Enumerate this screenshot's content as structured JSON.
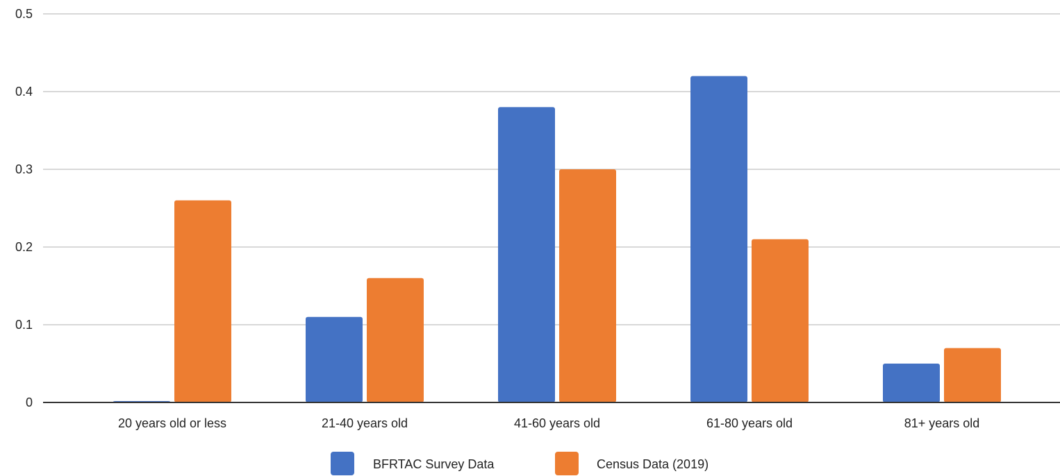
{
  "chart_data": {
    "type": "bar",
    "categories": [
      "20 years old or less",
      "21-40 years old",
      "41-60 years old",
      "61-80 years old",
      "81+ years old"
    ],
    "series": [
      {
        "name": "BFRTAC Survey Data",
        "values": [
          0.0,
          0.11,
          0.38,
          0.42,
          0.05
        ],
        "color": "#4472c4"
      },
      {
        "name": "Census Data (2019)",
        "values": [
          0.26,
          0.16,
          0.3,
          0.21,
          0.07
        ],
        "color": "#ed7d31"
      }
    ],
    "yticks": [
      "0",
      "0.1",
      "0.2",
      "0.3",
      "0.4",
      "0.5"
    ],
    "ylim": [
      0,
      0.5
    ],
    "grid": true,
    "legend_position": "bottom",
    "title": "",
    "xlabel": "",
    "ylabel": ""
  }
}
